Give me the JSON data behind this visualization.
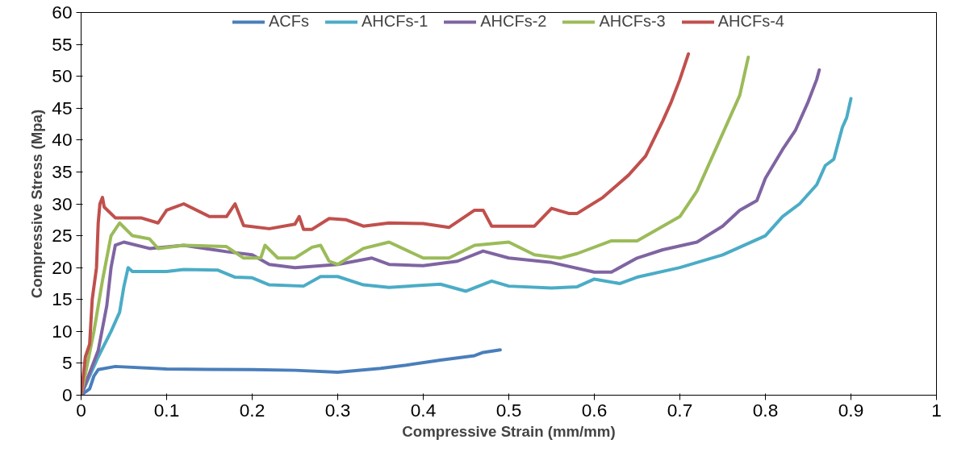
{
  "chart_data": {
    "type": "line",
    "xlabel": "Compressive Strain (mm/mm)",
    "ylabel": "Compressive Stress (Mpa)",
    "xlim": [
      0,
      1
    ],
    "xticks": [
      0,
      0.1,
      0.2,
      0.3,
      0.4,
      0.5,
      0.6,
      0.7,
      0.8,
      0.9,
      1
    ],
    "ylim": [
      0,
      60
    ],
    "yticks": [
      0,
      5,
      10,
      15,
      20,
      25,
      30,
      35,
      40,
      45,
      50,
      55,
      60
    ],
    "grid": false,
    "legend": "top",
    "marker": "none",
    "line_style": "solid",
    "series": [
      {
        "name": "ACFs",
        "color": "#4a7ebb",
        "x": [
          0,
          0.01,
          0.015,
          0.02,
          0.04,
          0.1,
          0.2,
          0.25,
          0.3,
          0.35,
          0.38,
          0.42,
          0.46,
          0.47,
          0.49
        ],
        "values": [
          0,
          1,
          3,
          4,
          4.5,
          4.1,
          4,
          3.9,
          3.6,
          4.2,
          4.7,
          5.5,
          6.2,
          6.7,
          7.1
        ]
      },
      {
        "name": "AHCFs-1",
        "color": "#4bacc6",
        "x": [
          0,
          0.01,
          0.02,
          0.035,
          0.045,
          0.05,
          0.055,
          0.06,
          0.1,
          0.12,
          0.16,
          0.18,
          0.2,
          0.22,
          0.26,
          0.28,
          0.3,
          0.33,
          0.36,
          0.42,
          0.45,
          0.48,
          0.5,
          0.55,
          0.58,
          0.6,
          0.63,
          0.65,
          0.7,
          0.75,
          0.8,
          0.82,
          0.84,
          0.86,
          0.87,
          0.88,
          0.89,
          0.895,
          0.9
        ],
        "values": [
          0,
          3,
          6,
          10,
          13,
          17,
          20,
          19.4,
          19.4,
          19.7,
          19.6,
          18.5,
          18.4,
          17.3,
          17.1,
          18.6,
          18.6,
          17.3,
          16.9,
          17.4,
          16.3,
          17.9,
          17.1,
          16.8,
          17,
          18.2,
          17.5,
          18.5,
          20,
          22,
          25,
          28,
          30,
          33,
          36,
          37,
          42,
          43.5,
          46.5
        ]
      },
      {
        "name": "AHCFs-2",
        "color": "#7f64a2",
        "x": [
          0,
          0.02,
          0.03,
          0.035,
          0.04,
          0.05,
          0.08,
          0.12,
          0.17,
          0.2,
          0.22,
          0.25,
          0.3,
          0.34,
          0.36,
          0.4,
          0.44,
          0.47,
          0.5,
          0.55,
          0.6,
          0.62,
          0.65,
          0.68,
          0.72,
          0.75,
          0.77,
          0.79,
          0.8,
          0.82,
          0.835,
          0.85,
          0.86,
          0.863
        ],
        "values": [
          0,
          7,
          14,
          20,
          23.5,
          24,
          23,
          23.5,
          22.5,
          22,
          20.5,
          20,
          20.5,
          21.5,
          20.5,
          20.3,
          21,
          22.6,
          21.5,
          20.8,
          19.3,
          19.3,
          21.5,
          22.8,
          24,
          26.5,
          29,
          30.5,
          34,
          38.5,
          41.5,
          46,
          49.5,
          51
        ]
      },
      {
        "name": "AHCFs-3",
        "color": "#9bbb59",
        "x": [
          0,
          0.015,
          0.025,
          0.035,
          0.045,
          0.06,
          0.08,
          0.09,
          0.12,
          0.17,
          0.19,
          0.21,
          0.215,
          0.23,
          0.25,
          0.27,
          0.28,
          0.29,
          0.3,
          0.33,
          0.36,
          0.4,
          0.43,
          0.46,
          0.5,
          0.53,
          0.56,
          0.58,
          0.62,
          0.65,
          0.7,
          0.72,
          0.74,
          0.76,
          0.77,
          0.78
        ],
        "values": [
          0,
          10,
          18,
          25,
          27,
          25,
          24.5,
          23,
          23.5,
          23.3,
          21.5,
          21.5,
          23.5,
          21.5,
          21.5,
          23.2,
          23.5,
          21,
          20.5,
          23,
          24,
          21.5,
          21.5,
          23.5,
          24,
          22,
          21.5,
          22.2,
          24.2,
          24.2,
          28,
          32,
          38,
          44,
          47,
          53
        ]
      },
      {
        "name": "AHCFs-4",
        "color": "#c0504d",
        "x": [
          0,
          0.005,
          0.01,
          0.013,
          0.018,
          0.02,
          0.022,
          0.025,
          0.027,
          0.04,
          0.07,
          0.09,
          0.1,
          0.12,
          0.15,
          0.17,
          0.18,
          0.19,
          0.22,
          0.25,
          0.255,
          0.26,
          0.27,
          0.29,
          0.31,
          0.33,
          0.36,
          0.4,
          0.43,
          0.46,
          0.47,
          0.48,
          0.53,
          0.55,
          0.57,
          0.58,
          0.61,
          0.64,
          0.66,
          0.68,
          0.69,
          0.7,
          0.71
        ],
        "values": [
          0,
          6,
          8,
          15,
          20,
          27,
          30,
          31,
          29.5,
          27.8,
          27.8,
          27,
          29,
          30,
          28,
          28,
          30,
          26.6,
          26.1,
          26.8,
          28,
          26,
          26,
          27.7,
          27.5,
          26.5,
          27,
          26.9,
          26.3,
          29,
          29,
          26.5,
          26.5,
          29.3,
          28.5,
          28.5,
          31,
          34.5,
          37.5,
          43,
          46,
          49.5,
          53.5
        ]
      }
    ]
  }
}
